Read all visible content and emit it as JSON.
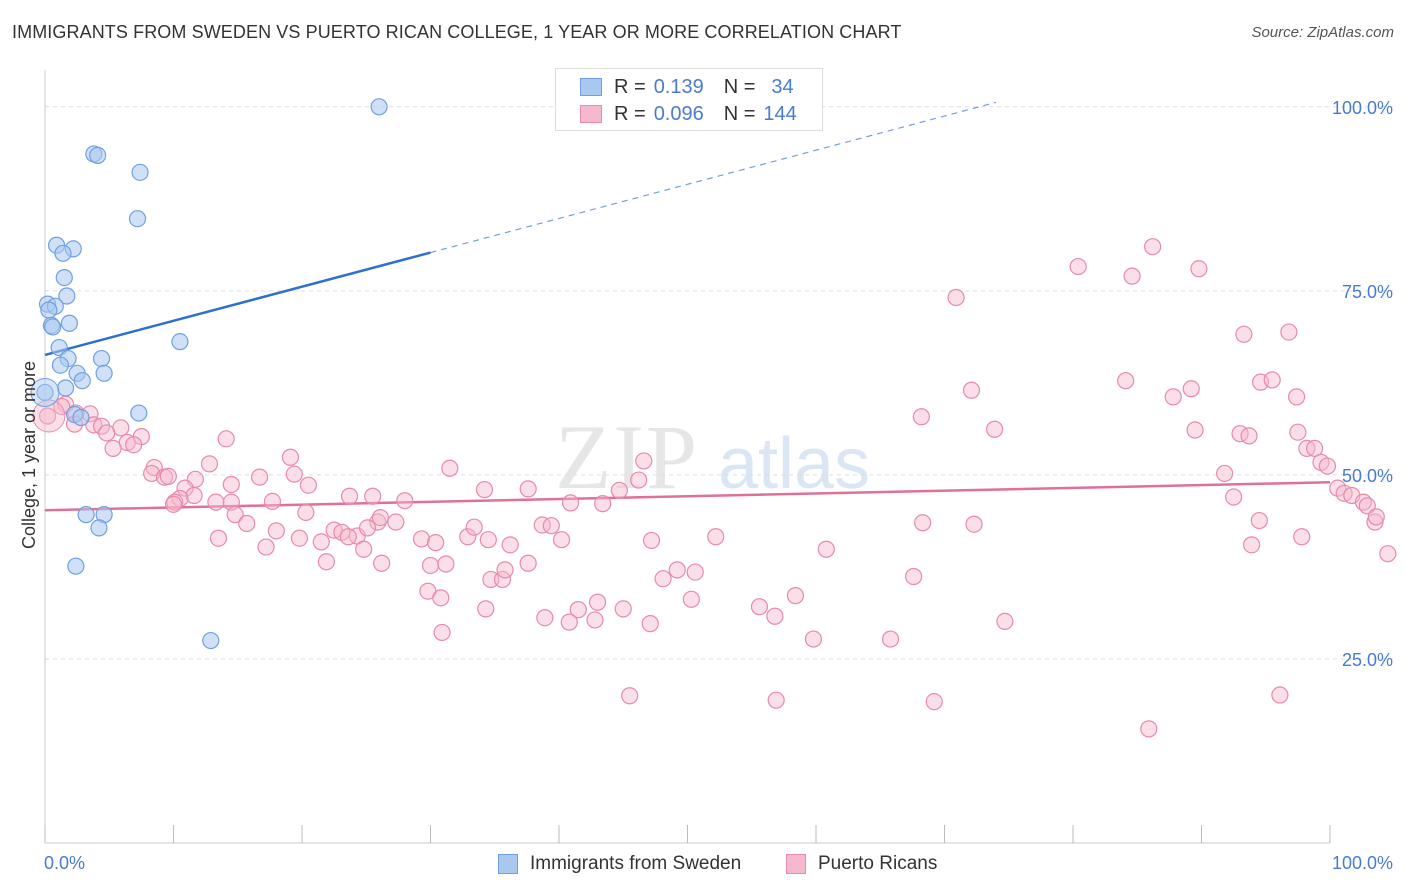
{
  "title": "IMMIGRANTS FROM SWEDEN VS PUERTO RICAN COLLEGE, 1 YEAR OR MORE CORRELATION CHART",
  "source": "Source: ZipAtlas.com",
  "watermark": {
    "zip": "ZIP",
    "atlas": "atlas"
  },
  "legend": {
    "rows": [
      {
        "r_label": "R =",
        "r_value": "0.139",
        "n_label": "N =",
        "n_value": "34"
      },
      {
        "r_label": "R =",
        "r_value": "0.096",
        "n_label": "N =",
        "n_value": "144"
      }
    ],
    "bottom": [
      "Immigrants from Sweden",
      "Puerto Ricans"
    ]
  },
  "colors": {
    "blue_fill": "#a9c8f0",
    "blue_stroke": "#6fa0e0",
    "blue_line": "#2f6fcf",
    "pink_fill": "#f5b8cc",
    "pink_stroke": "#e88aa8",
    "pink_line": "#e0709a",
    "grid": "#dddddd",
    "tick_text": "#4a7bd0"
  },
  "chart_data": {
    "type": "scatter",
    "title": "IMMIGRANTS FROM SWEDEN VS PUERTO RICAN COLLEGE, 1 YEAR OR MORE CORRELATION CHART",
    "xlabel": "",
    "ylabel": "College, 1 year or more",
    "xlim": [
      0,
      100
    ],
    "ylim": [
      0,
      105
    ],
    "x_tick_labels": [
      "0.0%",
      "100.0%"
    ],
    "y_ticks": [
      25,
      50,
      75,
      100
    ],
    "y_tick_labels": [
      "25.0%",
      "50.0%",
      "75.0%",
      "100.0%"
    ],
    "series": [
      {
        "name": "Immigrants from Sweden",
        "R": 0.139,
        "N": 34,
        "trend": {
          "x0": 0,
          "y0": 66.3,
          "x1": 30,
          "y1": 80.2,
          "dashed_to_x": 74,
          "dashed_to_y": 100.6
        },
        "points": [
          [
            26,
            100
          ],
          [
            3.8,
            93.6
          ],
          [
            4.1,
            93.4
          ],
          [
            7.4,
            91.1
          ],
          [
            7.2,
            84.8
          ],
          [
            0.9,
            81.2
          ],
          [
            2.2,
            80.7
          ],
          [
            1.4,
            80.1
          ],
          [
            1.5,
            76.8
          ],
          [
            1.7,
            74.3
          ],
          [
            0.2,
            73.2
          ],
          [
            0.8,
            72.9
          ],
          [
            0.3,
            72.4
          ],
          [
            0.5,
            70.3
          ],
          [
            1.9,
            70.6
          ],
          [
            0.6,
            70.1
          ],
          [
            10.5,
            68.1
          ],
          [
            1.1,
            67.3
          ],
          [
            1.8,
            65.8
          ],
          [
            4.4,
            65.8
          ],
          [
            1.2,
            64.9
          ],
          [
            2.5,
            63.8
          ],
          [
            4.6,
            63.8
          ],
          [
            2.9,
            62.8
          ],
          [
            1.6,
            61.8
          ],
          [
            0,
            61.2
          ],
          [
            7.3,
            58.4
          ],
          [
            2.3,
            58.2
          ],
          [
            2.8,
            57.8
          ],
          [
            3.2,
            44.6
          ],
          [
            4.6,
            44.6
          ],
          [
            4.2,
            42.8
          ],
          [
            2.4,
            37.6
          ],
          [
            12.9,
            27.5
          ]
        ]
      },
      {
        "name": "Puerto Ricans",
        "R": 0.096,
        "N": 144,
        "trend": {
          "x0": 0,
          "y0": 45.2,
          "x1": 100,
          "y1": 49.0
        },
        "points": [
          [
            0.2,
            58
          ],
          [
            1.6,
            59.6
          ],
          [
            1.3,
            59.3
          ],
          [
            3.5,
            58.3
          ],
          [
            2.4,
            58.4
          ],
          [
            2.3,
            56.9
          ],
          [
            3.8,
            56.8
          ],
          [
            4.4,
            56.6
          ],
          [
            5.9,
            56.4
          ],
          [
            4.8,
            55.7
          ],
          [
            6.4,
            54.4
          ],
          [
            7.5,
            55.2
          ],
          [
            6.9,
            54.1
          ],
          [
            5.3,
            53.6
          ],
          [
            14.1,
            54.9
          ],
          [
            19.1,
            52.4
          ],
          [
            31.5,
            50.9
          ],
          [
            12.8,
            51.5
          ],
          [
            8.5,
            51
          ],
          [
            8.3,
            50.2
          ],
          [
            9.3,
            49.7
          ],
          [
            9.6,
            49.8
          ],
          [
            16.7,
            49.7
          ],
          [
            19.4,
            50.1
          ],
          [
            11.7,
            49.4
          ],
          [
            14.5,
            48.7
          ],
          [
            20.5,
            48.6
          ],
          [
            46.6,
            51.9
          ],
          [
            46.2,
            49.3
          ],
          [
            44.7,
            47.9
          ],
          [
            34.2,
            48
          ],
          [
            37.6,
            48.1
          ],
          [
            10.9,
            48.2
          ],
          [
            11.6,
            47.2
          ],
          [
            10.5,
            46.8
          ],
          [
            10.1,
            46.3
          ],
          [
            10,
            46
          ],
          [
            13.3,
            46.3
          ],
          [
            14.5,
            46.3
          ],
          [
            17.7,
            46.4
          ],
          [
            25.5,
            47.1
          ],
          [
            23.7,
            47.1
          ],
          [
            28,
            46.5
          ],
          [
            40.9,
            46.2
          ],
          [
            43.4,
            46.1
          ],
          [
            14.8,
            44.6
          ],
          [
            15.7,
            43.4
          ],
          [
            20.3,
            44.9
          ],
          [
            22.5,
            42.5
          ],
          [
            23.1,
            42.2
          ],
          [
            24.3,
            41.7
          ],
          [
            25.9,
            43.6
          ],
          [
            25.1,
            42.8
          ],
          [
            26.1,
            44.2
          ],
          [
            27.3,
            43.6
          ],
          [
            18,
            42.4
          ],
          [
            19.8,
            41.4
          ],
          [
            21.5,
            40.9
          ],
          [
            23.6,
            41.6
          ],
          [
            29.3,
            41.3
          ],
          [
            30.4,
            40.8
          ],
          [
            32.9,
            41.6
          ],
          [
            33.4,
            42.9
          ],
          [
            34.5,
            41.2
          ],
          [
            38.7,
            43.2
          ],
          [
            39.4,
            43.1
          ],
          [
            40.2,
            41.2
          ],
          [
            13.5,
            41.4
          ],
          [
            17.2,
            40.2
          ],
          [
            21.9,
            38.2
          ],
          [
            24.8,
            39.9
          ],
          [
            36.2,
            40.5
          ],
          [
            47.2,
            41.1
          ],
          [
            52.2,
            41.6
          ],
          [
            30,
            37.7
          ],
          [
            26.2,
            38
          ],
          [
            31.2,
            37.9
          ],
          [
            37.6,
            38
          ],
          [
            34.7,
            35.8
          ],
          [
            35.6,
            35.8
          ],
          [
            48.1,
            35.9
          ],
          [
            49.2,
            37.1
          ],
          [
            29.8,
            34.2
          ],
          [
            30.8,
            33.3
          ],
          [
            35.8,
            37.1
          ],
          [
            41.5,
            31.7
          ],
          [
            43,
            32.7
          ],
          [
            45,
            31.8
          ],
          [
            50.3,
            33.1
          ],
          [
            55.6,
            32.1
          ],
          [
            58.4,
            33.6
          ],
          [
            56.8,
            30.8
          ],
          [
            34.3,
            31.8
          ],
          [
            38.9,
            30.6
          ],
          [
            40.8,
            30
          ],
          [
            42.8,
            30.3
          ],
          [
            47.1,
            29.8
          ],
          [
            30.9,
            28.6
          ],
          [
            59.8,
            27.7
          ],
          [
            65.8,
            27.7
          ],
          [
            67.6,
            36.2
          ],
          [
            60.8,
            39.9
          ],
          [
            50.6,
            36.8
          ],
          [
            68.3,
            43.5
          ],
          [
            72.3,
            43.3
          ],
          [
            73.9,
            56.2
          ],
          [
            68.2,
            57.9
          ],
          [
            72.1,
            61.5
          ],
          [
            70.9,
            74.1
          ],
          [
            80.4,
            78.3
          ],
          [
            84.6,
            77
          ],
          [
            86.2,
            81
          ],
          [
            89.8,
            78
          ],
          [
            87.8,
            60.6
          ],
          [
            84.1,
            62.8
          ],
          [
            89.2,
            61.7
          ],
          [
            89.5,
            56.1
          ],
          [
            91.8,
            50.2
          ],
          [
            93.3,
            69.1
          ],
          [
            93,
            55.6
          ],
          [
            93.7,
            55.3
          ],
          [
            94.6,
            62.6
          ],
          [
            95.5,
            62.9
          ],
          [
            96.8,
            69.4
          ],
          [
            97.4,
            60.6
          ],
          [
            97.5,
            55.8
          ],
          [
            98.2,
            53.6
          ],
          [
            98.8,
            53.6
          ],
          [
            99.3,
            51.7
          ],
          [
            99.8,
            51.2
          ],
          [
            100.6,
            48.2
          ],
          [
            101.1,
            47.5
          ],
          [
            101.7,
            47.2
          ],
          [
            102.6,
            46.3
          ],
          [
            102.9,
            45.8
          ],
          [
            103.5,
            43.6
          ],
          [
            103.6,
            44.3
          ],
          [
            104.5,
            39.3
          ],
          [
            92.5,
            47
          ],
          [
            94.5,
            43.8
          ],
          [
            93.9,
            40.5
          ],
          [
            97.8,
            41.6
          ],
          [
            74.7,
            30.1
          ],
          [
            56.9,
            19.4
          ],
          [
            45.5,
            20
          ],
          [
            69.2,
            19.2
          ],
          [
            85.9,
            15.5
          ],
          [
            96.1,
            20.1
          ]
        ]
      }
    ]
  }
}
